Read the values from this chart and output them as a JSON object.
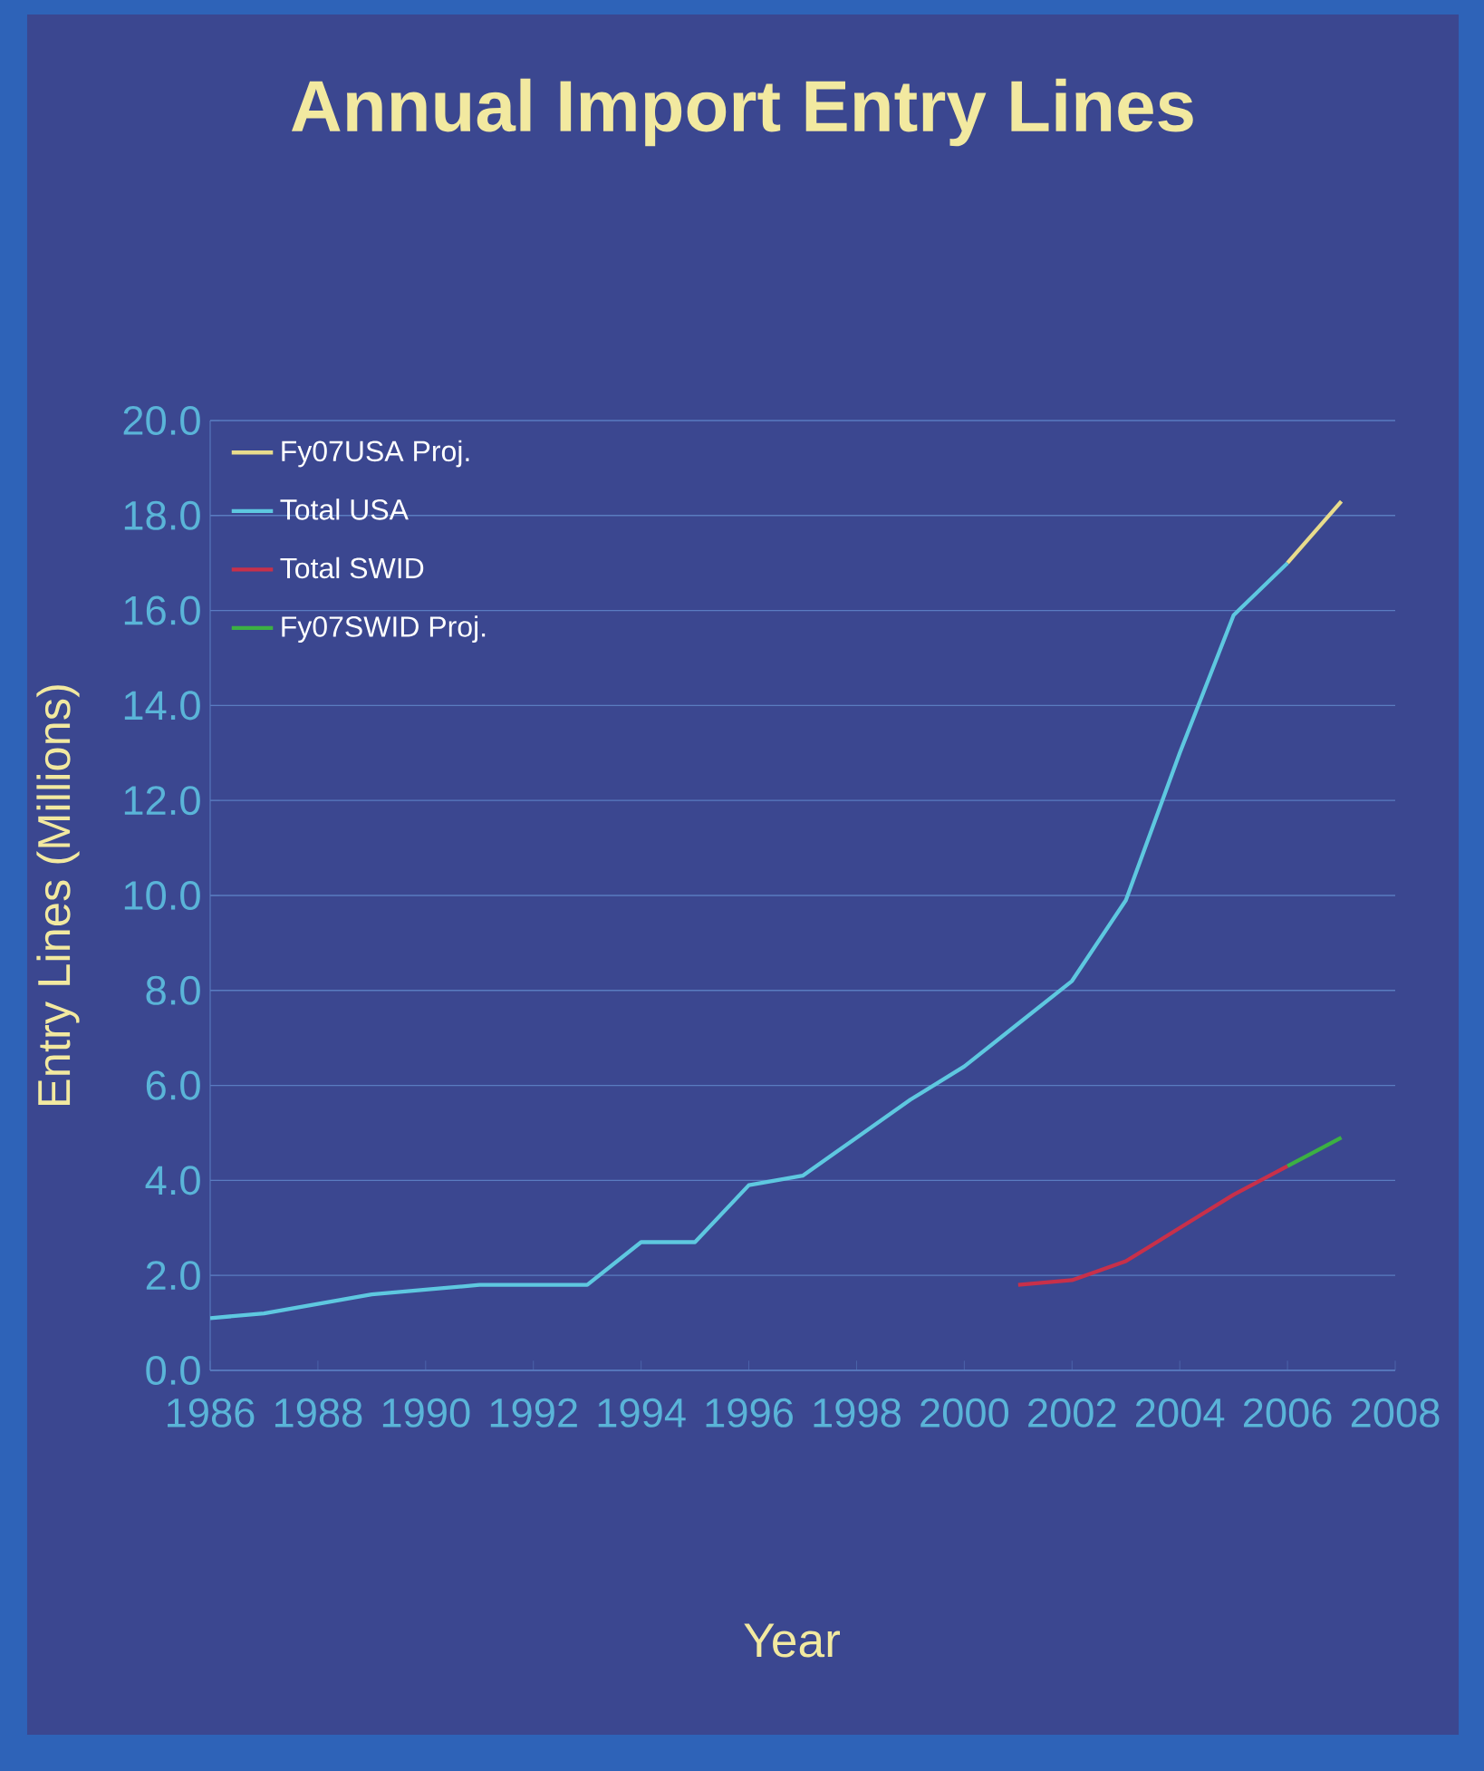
{
  "chart_data": {
    "type": "line",
    "title": "Annual Import Entry Lines",
    "xlabel": "Year",
    "ylabel": "Entry Lines (Millions)",
    "series": [
      {
        "name": "Fy07USA Proj.",
        "color": "#e8dc8c",
        "x": [
          2006,
          2007
        ],
        "values": [
          17.0,
          18.3
        ]
      },
      {
        "name": "Total USA",
        "color": "#5ec8e0",
        "x": [
          1986,
          1987,
          1988,
          1989,
          1990,
          1991,
          1992,
          1993,
          1994,
          1995,
          1996,
          1997,
          1998,
          1999,
          2000,
          2001,
          2002,
          2003,
          2004,
          2005,
          2006
        ],
        "values": [
          1.1,
          1.2,
          1.4,
          1.6,
          1.7,
          1.8,
          1.8,
          1.8,
          2.7,
          2.7,
          3.9,
          4.1,
          4.9,
          5.7,
          6.4,
          7.3,
          8.2,
          9.9,
          13.0,
          15.9,
          17.0
        ]
      },
      {
        "name": "Total SWID",
        "color": "#c8304a",
        "x": [
          2001,
          2002,
          2003,
          2004,
          2005,
          2006
        ],
        "values": [
          1.8,
          1.9,
          2.3,
          3.0,
          3.7,
          4.3
        ]
      },
      {
        "name": "Fy07SWID Proj.",
        "color": "#3cb043",
        "x": [
          2006,
          2007
        ],
        "values": [
          4.3,
          4.9
        ]
      }
    ],
    "xlim": [
      1986,
      2008
    ],
    "xticks": [
      1986,
      1988,
      1990,
      1992,
      1994,
      1996,
      1998,
      2000,
      2002,
      2004,
      2006,
      2008
    ],
    "ylim": [
      0,
      20
    ],
    "yticks": [
      {
        "value": 0,
        "label": "0.0"
      },
      {
        "value": 2,
        "label": "2.0"
      },
      {
        "value": 4,
        "label": "4.0"
      },
      {
        "value": 6,
        "label": "6.0"
      },
      {
        "value": 8,
        "label": "8.0"
      },
      {
        "value": 10,
        "label": "10.0"
      },
      {
        "value": 12,
        "label": "12.0"
      },
      {
        "value": 14,
        "label": "14.0"
      },
      {
        "value": 16,
        "label": "16.0"
      },
      {
        "value": 18,
        "label": "18.0"
      },
      {
        "value": 20,
        "label": "20.0"
      }
    ],
    "grid": "y",
    "legend": "top left",
    "marker": "none",
    "line_style": "solid"
  }
}
